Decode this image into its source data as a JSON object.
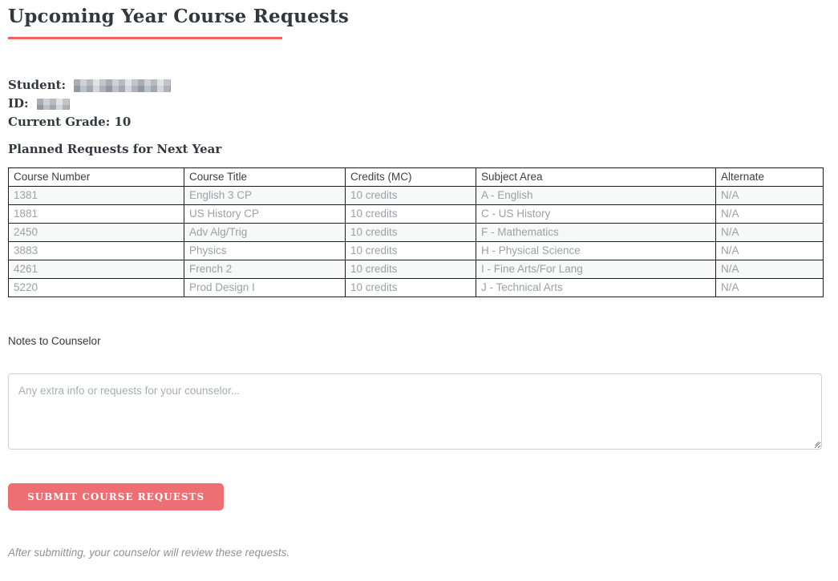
{
  "page": {
    "title": "Upcoming Year Course Requests",
    "footer_note": "After submitting, your counselor will review these requests."
  },
  "student": {
    "student_label": "Student:",
    "id_label": "ID:",
    "grade_label": "Current Grade:",
    "grade_value": "10",
    "name_redacted": true,
    "id_redacted": true
  },
  "requests": {
    "heading": "Planned Requests for Next Year",
    "columns": [
      "Course Number",
      "Course Title",
      "Credits (MC)",
      "Subject Area",
      "Alternate"
    ],
    "rows": [
      {
        "number": "1381",
        "title": "English 3 CP",
        "credits": "10 credits",
        "subject": "A - English",
        "alternate": "N/A"
      },
      {
        "number": "1881",
        "title": "US History CP",
        "credits": "10 credits",
        "subject": "C - US History",
        "alternate": "N/A"
      },
      {
        "number": "2450",
        "title": "Adv Alg/Trig",
        "credits": "10 credits",
        "subject": "F - Mathematics",
        "alternate": "N/A"
      },
      {
        "number": "3883",
        "title": "Physics",
        "credits": "10 credits",
        "subject": "H - Physical Science",
        "alternate": "N/A"
      },
      {
        "number": "4261",
        "title": "French 2",
        "credits": "10 credits",
        "subject": "I - Fine Arts/For Lang",
        "alternate": "N/A"
      },
      {
        "number": "5220",
        "title": "Prod Design I",
        "credits": "10 credits",
        "subject": "J - Technical Arts",
        "alternate": "N/A"
      }
    ]
  },
  "notes": {
    "label": "Notes to Counselor",
    "placeholder": "Any extra info or requests for your counselor...",
    "value": ""
  },
  "submit": {
    "label": "SUBMIT COURSE REQUESTS"
  },
  "colors": {
    "accent_underline": "#f0605f",
    "submit_button": "#ed6e73",
    "table_border": "#1b1b1b",
    "row_stripe": "#f7f8f8",
    "cell_text": "#9ba1a4",
    "heading_text": "#33383d"
  }
}
